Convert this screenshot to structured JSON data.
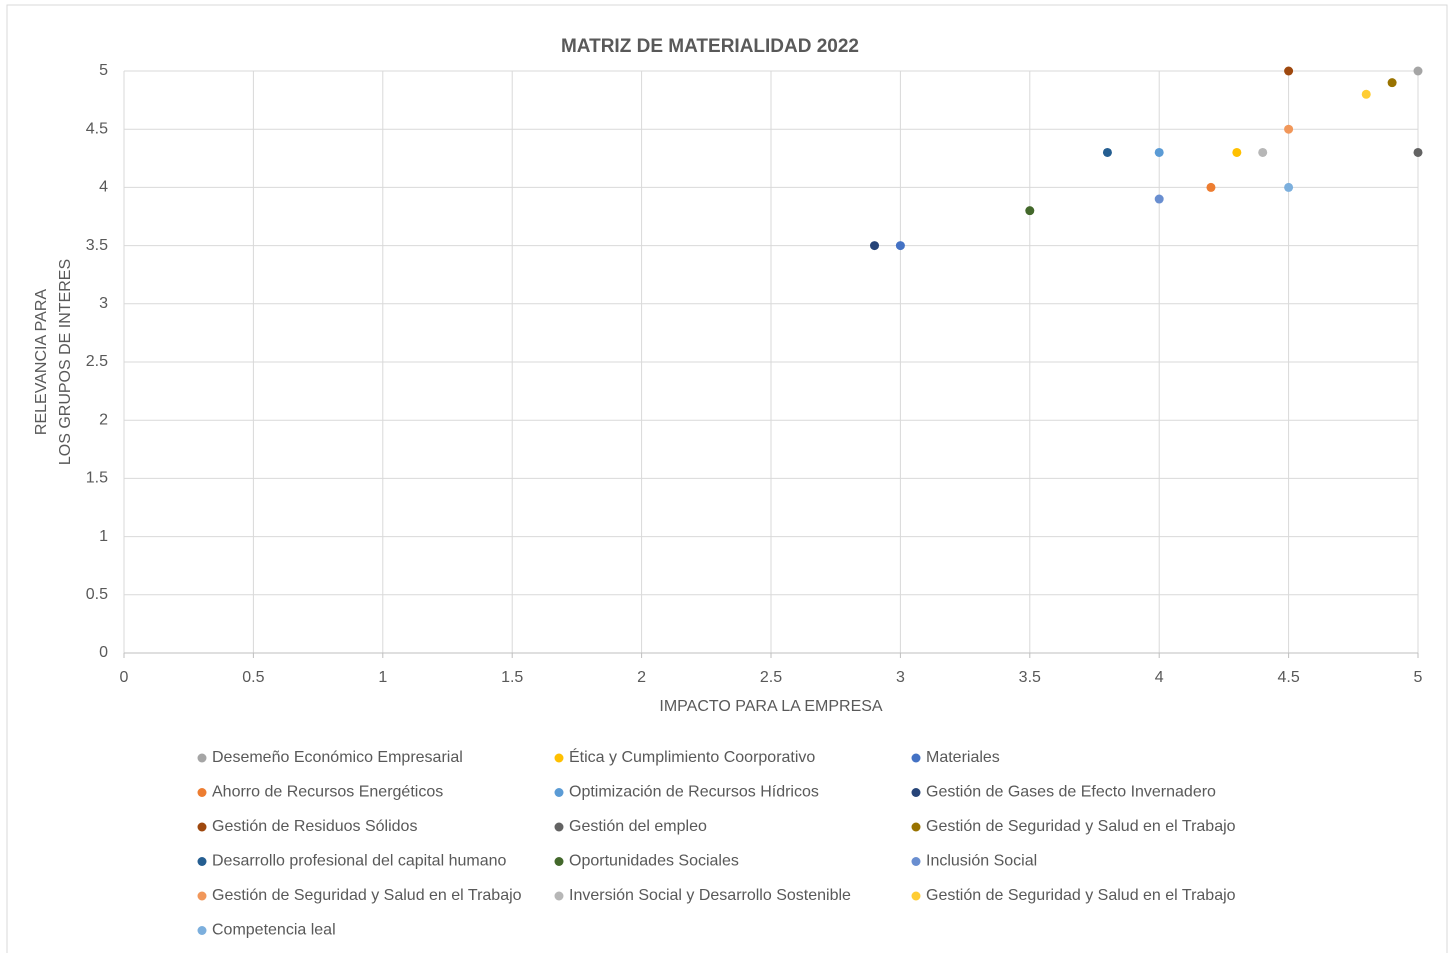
{
  "chart_data": {
    "type": "scatter",
    "title": "MATRIZ DE MATERIALIDAD  2022",
    "x_label": "IMPACTO PARA LA EMPRESA",
    "y_label": [
      "RELEVANCIA PARA",
      "LOS GRUPOS DE INTERES"
    ],
    "xlim": [
      0,
      5
    ],
    "xticks": [
      0,
      0.5,
      1,
      1.5,
      2,
      2.5,
      3,
      3.5,
      4,
      4.5,
      5
    ],
    "ylim": [
      0,
      5
    ],
    "yticks": [
      0,
      0.5,
      1,
      1.5,
      2,
      2.5,
      3,
      3.5,
      4,
      4.5,
      5
    ],
    "grid": true,
    "legend": "bottom",
    "series": [
      {
        "name": "Desemeño Económico Empresarial",
        "color": "#a5a5a5",
        "x": [
          5
        ],
        "values": [
          5
        ]
      },
      {
        "name": "Ética y Cumplimiento Coorporativo",
        "color": "#ffc000",
        "x": [
          4.3
        ],
        "values": [
          4.3
        ]
      },
      {
        "name": "Materiales",
        "color": "#4472c4",
        "x": [
          3
        ],
        "values": [
          3.5
        ]
      },
      {
        "name": "Ahorro de Recursos Energéticos",
        "color": "#ed7d31",
        "x": [
          4.2
        ],
        "values": [
          4.0
        ]
      },
      {
        "name": "Optimización de Recursos Hídricos",
        "color": "#5b9bd5",
        "x": [
          4
        ],
        "values": [
          4.3
        ]
      },
      {
        "name": "Gestión de Gases de Efecto Invernadero",
        "color": "#264478",
        "x": [
          2.9
        ],
        "values": [
          3.5
        ]
      },
      {
        "name": "Gestión de Residuos Sólidos",
        "color": "#9e480e",
        "x": [
          4.5
        ],
        "values": [
          5
        ]
      },
      {
        "name": "Gestión del empleo",
        "color": "#636363",
        "x": [
          5
        ],
        "values": [
          4.3
        ]
      },
      {
        "name": "Gestión de Seguridad y Salud en el Trabajo",
        "color": "#997300",
        "x": [
          4.9
        ],
        "values": [
          4.9
        ]
      },
      {
        "name": "Desarrollo profesional del capital humano",
        "color": "#255e91",
        "x": [
          3.8
        ],
        "values": [
          4.3
        ]
      },
      {
        "name": "Oportunidades Sociales",
        "color": "#43682b",
        "x": [
          3.5
        ],
        "values": [
          3.8
        ]
      },
      {
        "name": "Inclusión Social",
        "color": "#698ed0",
        "x": [
          4
        ],
        "values": [
          3.9
        ]
      },
      {
        "name": "Gestión de Seguridad y Salud en el Trabajo",
        "color": "#f1975a",
        "x": [
          4.5
        ],
        "values": [
          4.5
        ]
      },
      {
        "name": "Inversión Social y Desarrollo Sostenible",
        "color": "#b7b7b7",
        "x": [
          4.4
        ],
        "values": [
          4.3
        ]
      },
      {
        "name": "Gestión de Seguridad y Salud en el Trabajo",
        "color": "#ffcd33",
        "x": [
          4.8
        ],
        "values": [
          4.8
        ]
      },
      {
        "name": "Competencia leal",
        "color": "#7cafdd",
        "x": [
          4.5
        ],
        "values": [
          4.0
        ]
      }
    ]
  }
}
